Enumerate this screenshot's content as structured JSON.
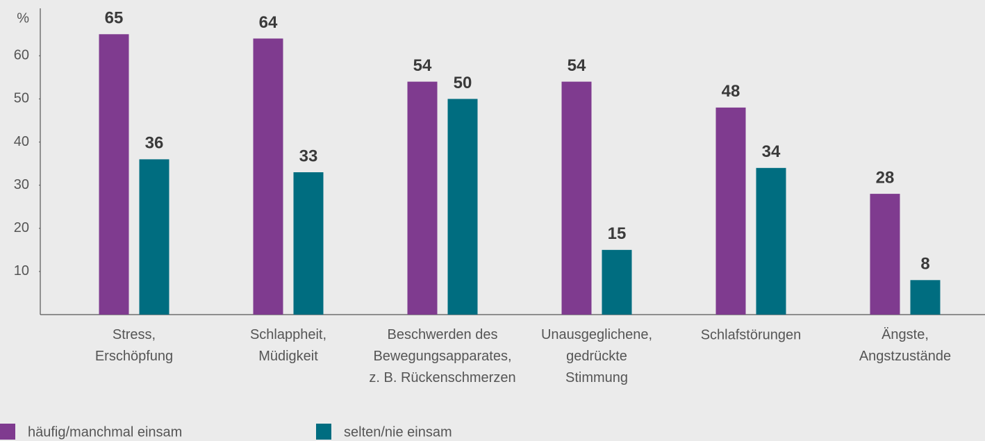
{
  "chart_data": {
    "type": "bar",
    "y_label": "%",
    "categories": [
      "Stress,\nErschöpfung",
      "Schlappheit,\nMüdigkeit",
      "Beschwerden des\nBewegungsapparates,\nz. B. Rückenschmerzen",
      "Unausgeglichene,\ngedrückte\nStimmung",
      "Schlafstörungen",
      "Ängste,\nAngstzustände"
    ],
    "series": [
      {
        "name": "häufig/manchmal einsam",
        "color": "#7f3b8f",
        "values": [
          65,
          64,
          54,
          54,
          48,
          28
        ]
      },
      {
        "name": "selten/nie einsam",
        "color": "#006d80",
        "values": [
          36,
          33,
          50,
          15,
          34,
          8
        ]
      }
    ],
    "ylim": [
      0,
      71
    ],
    "yticks": [
      10,
      20,
      30,
      40,
      50,
      60
    ],
    "grid": false
  }
}
